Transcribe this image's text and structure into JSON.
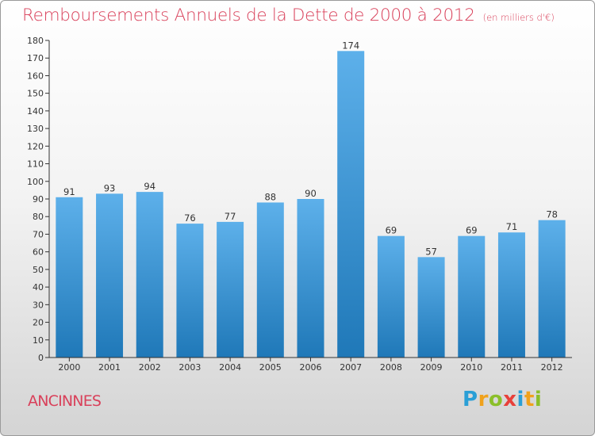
{
  "header": {
    "title": "Remboursements Annuels de la Dette de 2000 à 2012",
    "subtitle": "(en milliers d'€)"
  },
  "footer": {
    "commune": "ANCINNES",
    "brand": "Proxiti",
    "brand_letters": [
      {
        "ch": "P",
        "color": "#2a9fd6"
      },
      {
        "ch": "r",
        "color": "#f0a21c"
      },
      {
        "ch": "o",
        "color": "#8bbf2a"
      },
      {
        "ch": "x",
        "color": "#e8403a"
      },
      {
        "ch": "i",
        "color": "#2a9fd6"
      },
      {
        "ch": "t",
        "color": "#f0a21c"
      },
      {
        "ch": "i",
        "color": "#8bbf2a"
      }
    ]
  },
  "colors": {
    "title": "#d9405a",
    "bar_light": "#5aaee8",
    "bar_dark": "#1f78b8",
    "axis": "#333333"
  },
  "chart_data": {
    "type": "bar",
    "title": "Remboursements Annuels de la Dette de 2000 à 2012",
    "subtitle": "(en milliers d'€)",
    "categories": [
      "2000",
      "2001",
      "2002",
      "2003",
      "2004",
      "2005",
      "2006",
      "2007",
      "2008",
      "2009",
      "2010",
      "2011",
      "2012"
    ],
    "values": [
      91,
      93,
      94,
      76,
      77,
      88,
      90,
      174,
      69,
      57,
      69,
      71,
      78
    ],
    "ylim": [
      0,
      180
    ],
    "ytick_step": 10,
    "grid": false,
    "xlabel": "",
    "ylabel": ""
  }
}
